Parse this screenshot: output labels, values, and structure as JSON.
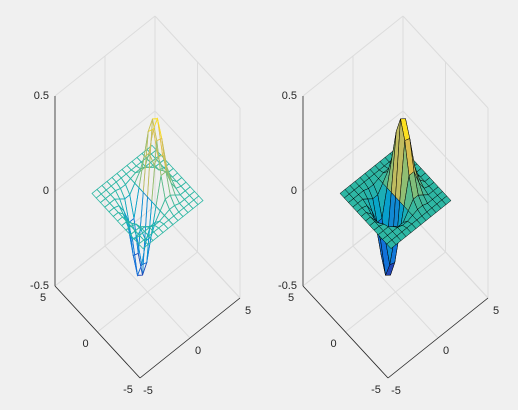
{
  "chart_data": [
    {
      "type": "mesh",
      "x": [
        -3,
        -2.5,
        -2,
        -1.5,
        -1,
        -0.5,
        0,
        0.5,
        1,
        1.5,
        2,
        2.5,
        3
      ],
      "y": [
        -3,
        -2.5,
        -2,
        -1.5,
        -1,
        -0.5,
        0,
        0.5,
        1,
        1.5,
        2,
        2.5,
        3
      ],
      "z": [
        [
          0,
          0,
          0,
          0,
          0,
          0,
          0,
          0,
          0,
          0,
          0,
          0,
          0
        ],
        [
          0,
          0,
          0,
          0,
          0,
          0,
          0,
          0,
          0,
          0,
          0,
          0,
          0
        ],
        [
          0,
          0,
          0,
          0,
          -0.01,
          -0.01,
          0,
          0.01,
          0.01,
          0,
          0,
          0,
          0
        ],
        [
          0,
          0,
          0,
          -0.02,
          -0.04,
          -0.04,
          0,
          0.04,
          0.04,
          0.02,
          0,
          0,
          0
        ],
        [
          0,
          0,
          -0.01,
          -0.06,
          -0.14,
          -0.14,
          0,
          0.14,
          0.14,
          0.06,
          0.01,
          0,
          0
        ],
        [
          0,
          0,
          -0.03,
          -0.12,
          -0.29,
          -0.3,
          0,
          0.3,
          0.29,
          0.12,
          0.03,
          0,
          0
        ],
        [
          0,
          0,
          -0.04,
          -0.16,
          -0.37,
          -0.39,
          0,
          0.39,
          0.37,
          0.16,
          0.04,
          0,
          0
        ],
        [
          0,
          0,
          -0.03,
          -0.12,
          -0.29,
          -0.3,
          0,
          0.3,
          0.29,
          0.12,
          0.03,
          0,
          0
        ],
        [
          0,
          0,
          -0.01,
          -0.06,
          -0.14,
          -0.14,
          0,
          0.14,
          0.14,
          0.06,
          0.01,
          0,
          0
        ],
        [
          0,
          0,
          0,
          -0.02,
          -0.04,
          -0.04,
          0,
          0.04,
          0.04,
          0.02,
          0,
          0,
          0
        ],
        [
          0,
          0,
          0,
          0,
          -0.01,
          -0.01,
          0,
          0.01,
          0.01,
          0,
          0,
          0,
          0
        ],
        [
          0,
          0,
          0,
          0,
          0,
          0,
          0,
          0,
          0,
          0,
          0,
          0,
          0
        ],
        [
          0,
          0,
          0,
          0,
          0,
          0,
          0,
          0,
          0,
          0,
          0,
          0,
          0
        ]
      ],
      "xlim": [
        -5,
        5
      ],
      "ylim": [
        -5,
        5
      ],
      "zlim": [
        -0.5,
        0.5
      ],
      "xticks": [
        -5,
        0,
        5
      ],
      "yticks": [
        -5,
        0,
        5
      ],
      "zticks": [
        -0.5,
        0,
        0.5
      ],
      "grid": true,
      "colormap": [
        "#352a87",
        "#0f5cdd",
        "#1481d6",
        "#06a4ca",
        "#2eb7a4",
        "#87bf77",
        "#d1bb59",
        "#fec832",
        "#f9fb0e"
      ]
    },
    {
      "type": "surf",
      "x": [
        -3,
        -2.5,
        -2,
        -1.5,
        -1,
        -0.5,
        0,
        0.5,
        1,
        1.5,
        2,
        2.5,
        3
      ],
      "y": [
        -3,
        -2.5,
        -2,
        -1.5,
        -1,
        -0.5,
        0,
        0.5,
        1,
        1.5,
        2,
        2.5,
        3
      ],
      "z": [
        [
          0,
          0,
          0,
          0,
          0,
          0,
          0,
          0,
          0,
          0,
          0,
          0,
          0
        ],
        [
          0,
          0,
          0,
          0,
          0,
          0,
          0,
          0,
          0,
          0,
          0,
          0,
          0
        ],
        [
          0,
          0,
          0,
          0,
          -0.01,
          -0.01,
          0,
          0.01,
          0.01,
          0,
          0,
          0,
          0
        ],
        [
          0,
          0,
          0,
          -0.02,
          -0.04,
          -0.04,
          0,
          0.04,
          0.04,
          0.02,
          0,
          0,
          0
        ],
        [
          0,
          0,
          -0.01,
          -0.06,
          -0.14,
          -0.14,
          0,
          0.14,
          0.14,
          0.06,
          0.01,
          0,
          0
        ],
        [
          0,
          0,
          -0.03,
          -0.12,
          -0.29,
          -0.3,
          0,
          0.3,
          0.29,
          0.12,
          0.03,
          0,
          0
        ],
        [
          0,
          0,
          -0.04,
          -0.16,
          -0.37,
          -0.39,
          0,
          0.39,
          0.37,
          0.16,
          0.04,
          0,
          0
        ],
        [
          0,
          0,
          -0.03,
          -0.12,
          -0.29,
          -0.3,
          0,
          0.3,
          0.29,
          0.12,
          0.03,
          0,
          0
        ],
        [
          0,
          0,
          -0.01,
          -0.06,
          -0.14,
          -0.14,
          0,
          0.14,
          0.14,
          0.06,
          0.01,
          0,
          0
        ],
        [
          0,
          0,
          0,
          -0.02,
          -0.04,
          -0.04,
          0,
          0.04,
          0.04,
          0.02,
          0,
          0,
          0
        ],
        [
          0,
          0,
          0,
          0,
          -0.01,
          -0.01,
          0,
          0.01,
          0.01,
          0,
          0,
          0,
          0
        ],
        [
          0,
          0,
          0,
          0,
          0,
          0,
          0,
          0,
          0,
          0,
          0,
          0,
          0
        ],
        [
          0,
          0,
          0,
          0,
          0,
          0,
          0,
          0,
          0,
          0,
          0,
          0,
          0
        ]
      ],
      "xlim": [
        -5,
        5
      ],
      "ylim": [
        -5,
        5
      ],
      "zlim": [
        -0.5,
        0.5
      ],
      "xticks": [
        -5,
        0,
        5
      ],
      "yticks": [
        -5,
        0,
        5
      ],
      "zticks": [
        -0.5,
        0,
        0.5
      ],
      "grid": true,
      "edgecolor": "#000000",
      "colormap": [
        "#352a87",
        "#0f5cdd",
        "#1481d6",
        "#06a4ca",
        "#2eb7a4",
        "#87bf77",
        "#d1bb59",
        "#fec832",
        "#f9fb0e"
      ]
    }
  ]
}
